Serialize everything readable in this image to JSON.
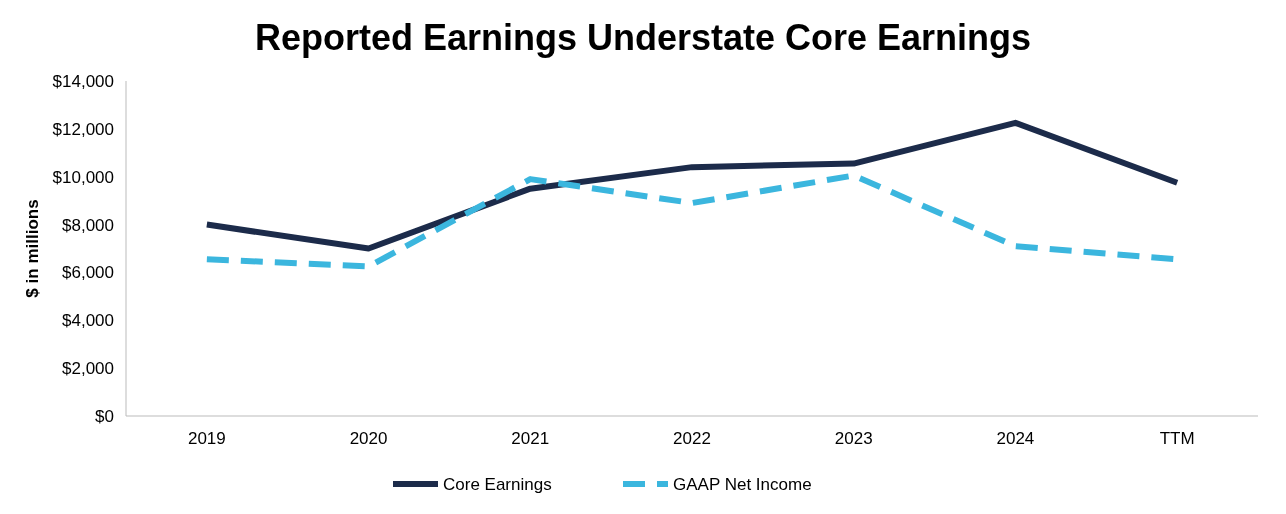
{
  "chart_data": {
    "type": "line",
    "title": "Reported Earnings Understate Core Earnings",
    "ylabel": "$ in millions",
    "categories": [
      "2019",
      "2020",
      "2021",
      "2022",
      "2023",
      "2024",
      "TTM"
    ],
    "series": [
      {
        "name": "Core Earnings",
        "color": "#1c2b4a",
        "line_style": "solid",
        "values": [
          8000,
          7000,
          9500,
          10400,
          10550,
          12250,
          9750
        ]
      },
      {
        "name": "GAAP Net Income",
        "color": "#3bb6de",
        "line_style": "dashed",
        "values": [
          6550,
          6250,
          9900,
          8900,
          10050,
          7100,
          6550
        ]
      }
    ],
    "ylim": [
      0,
      14000
    ],
    "yticks": [
      {
        "value": 0,
        "label": "$0"
      },
      {
        "value": 2000,
        "label": "$2,000"
      },
      {
        "value": 4000,
        "label": "$4,000"
      },
      {
        "value": 6000,
        "label": "$6,000"
      },
      {
        "value": 8000,
        "label": "$8,000"
      },
      {
        "value": 10000,
        "label": "$10,000"
      },
      {
        "value": 12000,
        "label": "$12,000"
      },
      {
        "value": 14000,
        "label": "$14,000"
      }
    ],
    "grid": false,
    "legend": "bottom",
    "marker": "none"
  }
}
